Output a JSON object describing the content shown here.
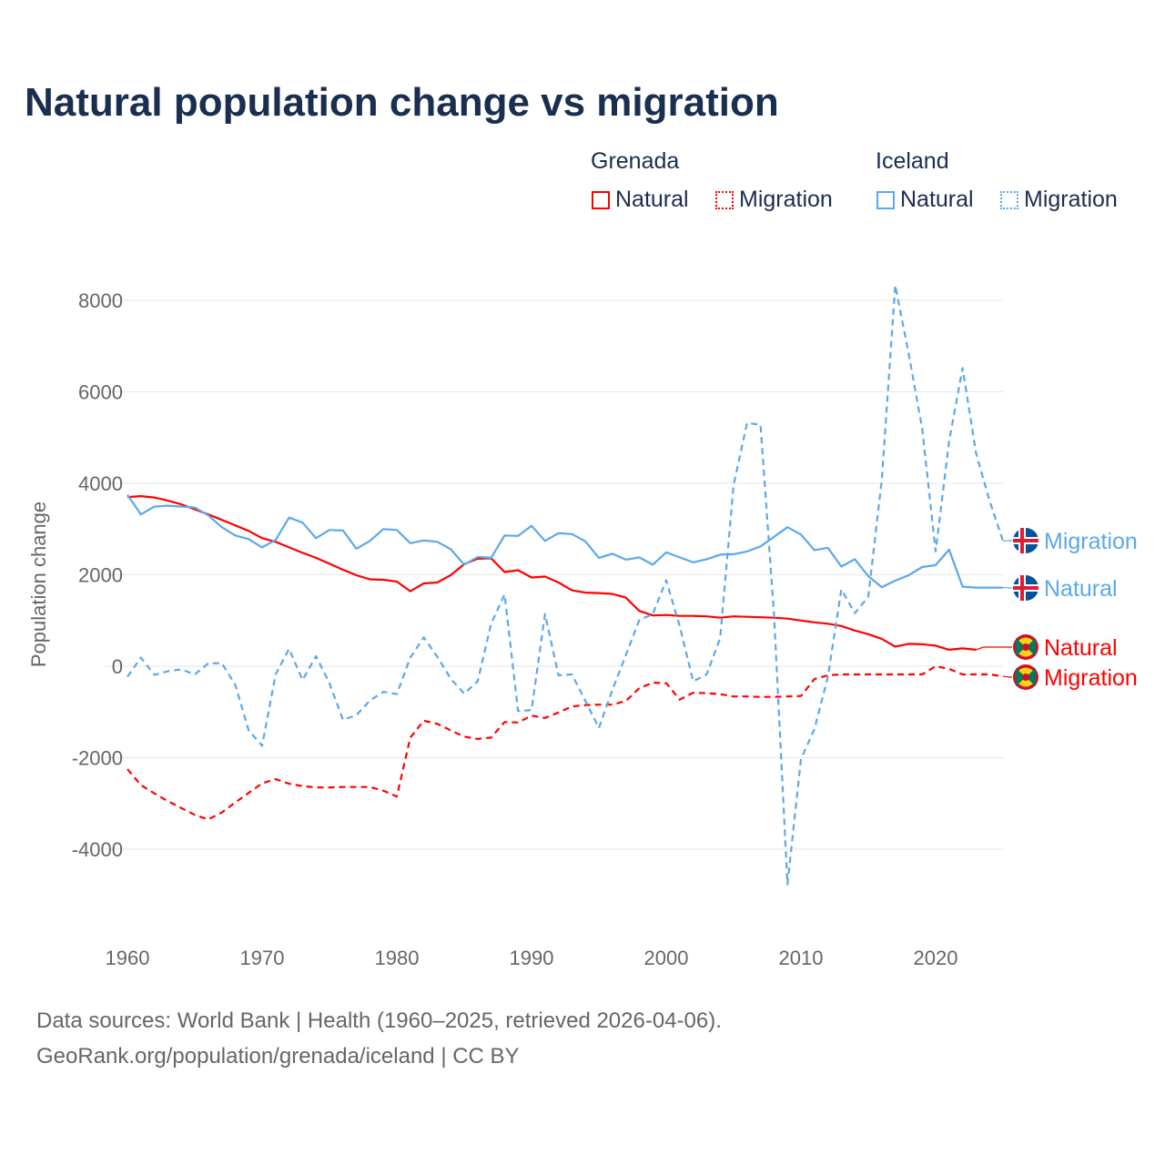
{
  "title": "Natural population change vs migration",
  "legend": {
    "groups": [
      {
        "name": "Grenada",
        "items": [
          "Natural",
          "Migration"
        ],
        "color": "#ff0000"
      },
      {
        "name": "Iceland",
        "items": [
          "Natural",
          "Migration"
        ],
        "color": "#5ba8ec"
      }
    ]
  },
  "footer": {
    "line1": "Data sources: World Bank | Health (1960–2025, retrieved 2026-04-06).",
    "line2": "GeoRank.org/population/grenada/iceland | CC BY"
  },
  "chart_data": {
    "type": "line",
    "title": "Natural population change vs migration",
    "xlabel": "",
    "ylabel": "Population change",
    "xlim": [
      1960,
      2025
    ],
    "ylim": [
      -5500,
      8500
    ],
    "yticks": [
      8000,
      6000,
      4000,
      2000,
      0,
      -2000,
      -4000
    ],
    "ytick_labels": [
      "8000",
      "6000",
      "4000",
      "2000",
      "0",
      "-2000",
      "-4000"
    ],
    "xticks": [
      1960,
      1970,
      1980,
      1990,
      2000,
      2010,
      2020
    ],
    "xtick_labels": [
      "1960",
      "1970",
      "1980",
      "1990",
      "2000",
      "2010",
      "2020"
    ],
    "grid": true,
    "x_start": 1960,
    "series": [
      {
        "name": "Grenada Natural",
        "label": "Natural",
        "color": "#ff0000",
        "dashed": false,
        "values": [
          3700,
          3720,
          3690,
          3620,
          3540,
          3430,
          3320,
          3200,
          3080,
          2960,
          2800,
          2720,
          2600,
          2480,
          2370,
          2240,
          2110,
          1990,
          1900,
          1890,
          1850,
          1640,
          1810,
          1830,
          1990,
          2230,
          2350,
          2360,
          2060,
          2100,
          1940,
          1960,
          1830,
          1660,
          1610,
          1600,
          1580,
          1500,
          1210,
          1110,
          1120,
          1100,
          1100,
          1090,
          1060,
          1090,
          1080,
          1070,
          1060,
          1040,
          1000,
          960,
          930,
          880,
          780,
          700,
          600,
          430,
          490,
          480,
          450,
          360,
          390,
          360
        ]
      },
      {
        "name": "Grenada Migration",
        "label": "Migration",
        "color": "#ff0000",
        "dashed": true,
        "values": [
          -2250,
          -2600,
          -2780,
          -2950,
          -3100,
          -3250,
          -3350,
          -3200,
          -2980,
          -2770,
          -2560,
          -2470,
          -2570,
          -2620,
          -2650,
          -2650,
          -2640,
          -2640,
          -2640,
          -2720,
          -2850,
          -1560,
          -1190,
          -1260,
          -1400,
          -1540,
          -1590,
          -1560,
          -1220,
          -1230,
          -1080,
          -1130,
          -1010,
          -880,
          -850,
          -840,
          -840,
          -760,
          -480,
          -360,
          -370,
          -730,
          -580,
          -590,
          -610,
          -660,
          -660,
          -670,
          -670,
          -660,
          -650,
          -280,
          -200,
          -180,
          -180,
          -180,
          -180,
          -180,
          -180,
          -180,
          0,
          -60,
          -180,
          -180,
          -180,
          -220
        ]
      },
      {
        "name": "Iceland Natural",
        "label": "Natural",
        "color": "#5ba8ec",
        "dashed": false,
        "values": [
          3750,
          3320,
          3490,
          3510,
          3490,
          3470,
          3300,
          3040,
          2860,
          2780,
          2600,
          2760,
          3250,
          3140,
          2800,
          2980,
          2970,
          2570,
          2740,
          3000,
          2980,
          2690,
          2750,
          2720,
          2560,
          2220,
          2390,
          2370,
          2860,
          2850,
          3070,
          2740,
          2910,
          2890,
          2730,
          2370,
          2460,
          2330,
          2380,
          2220,
          2490,
          2380,
          2270,
          2340,
          2440,
          2450,
          2510,
          2620,
          2830,
          3040,
          2880,
          2540,
          2590,
          2180,
          2340,
          1970,
          1730,
          1870,
          1990,
          2170,
          2210,
          2550,
          1740,
          1720,
          1720,
          1720
        ]
      },
      {
        "name": "Iceland Migration",
        "label": "Migration",
        "color": "#5ba8ec",
        "dashed": true,
        "values": [
          -230,
          190,
          -190,
          -110,
          -70,
          -180,
          60,
          70,
          -400,
          -1400,
          -1740,
          -180,
          380,
          -300,
          220,
          -370,
          -1170,
          -1070,
          -750,
          -560,
          -610,
          190,
          630,
          210,
          -270,
          -600,
          -330,
          930,
          1570,
          -980,
          -960,
          1140,
          -200,
          -180,
          -760,
          -1350,
          -520,
          240,
          1010,
          1140,
          1880,
          880,
          -330,
          -180,
          610,
          3960,
          5320,
          5280,
          1140,
          -4770,
          -2030,
          -1380,
          -230,
          1680,
          1160,
          1520,
          4070,
          8330,
          6830,
          5200,
          2510,
          4920,
          6520,
          4660,
          3620,
          2740
        ]
      }
    ],
    "end_labels": [
      {
        "series": "Iceland Migration",
        "text": "Migration",
        "flag": "iceland-flag"
      },
      {
        "series": "Iceland Natural",
        "text": "Natural",
        "flag": "iceland-flag"
      },
      {
        "series": "Grenada Natural",
        "text": "Natural",
        "flag": "grenada-flag"
      },
      {
        "series": "Grenada Migration",
        "text": "Migration",
        "flag": "grenada-flag"
      }
    ]
  }
}
